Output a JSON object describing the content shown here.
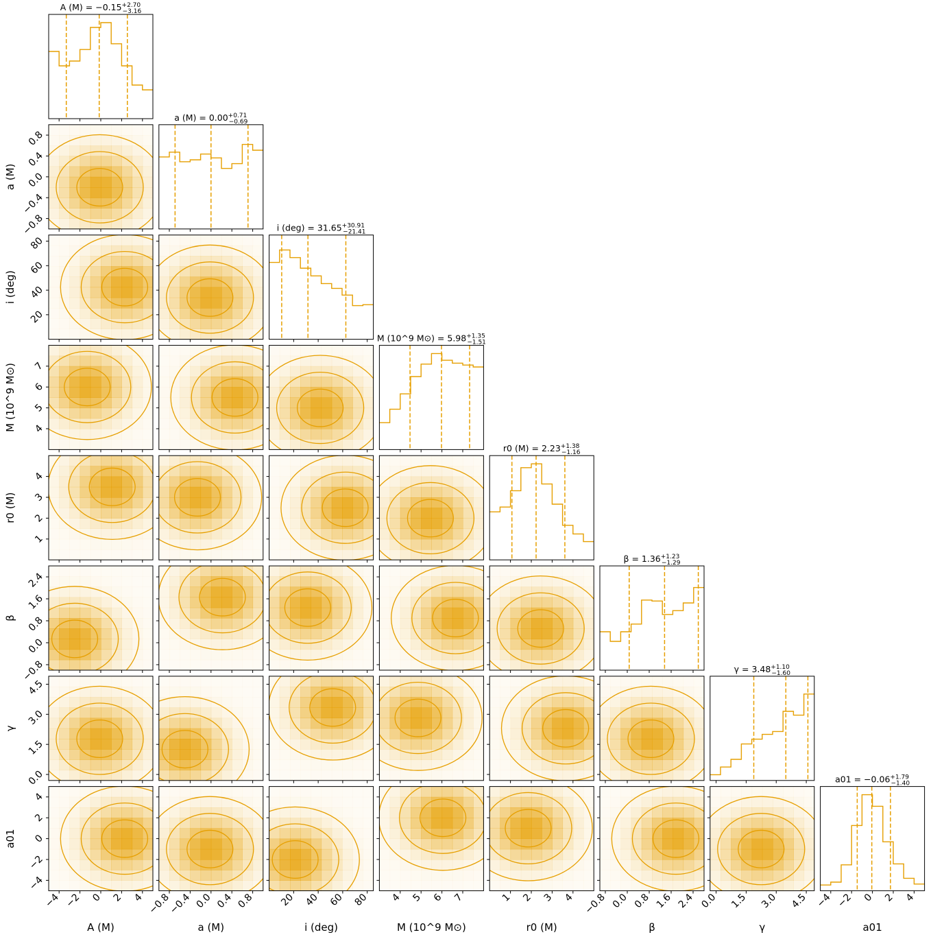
{
  "chart_data": {
    "type": "corner",
    "color": "#e69f00",
    "parameters": [
      {
        "key": "A",
        "label": "A (M)",
        "range": [
          -5,
          5
        ],
        "ticks": [
          -4,
          -2,
          0,
          2,
          4
        ],
        "tick_labels": [
          "−4",
          "−2",
          "0",
          "2",
          "4"
        ],
        "title": "A (M) = −0.15 (+2.70, −3.16)",
        "median": -0.15,
        "q_lo": -3.31,
        "q_hi": 2.55,
        "hist": [
          0.7,
          0.55,
          0.6,
          0.72,
          0.95,
          1.0,
          0.78,
          0.55,
          0.35,
          0.3
        ]
      },
      {
        "key": "a",
        "label": "a (M)",
        "range": [
          -1,
          1
        ],
        "ticks": [
          -0.8,
          -0.4,
          0.0,
          0.4,
          0.8
        ],
        "tick_labels": [
          "−0.8",
          "−0.4",
          "0.0",
          "0.4",
          "0.8"
        ],
        "title": "a (M) = 0.00 (+0.71, −0.69)",
        "median": 0.0,
        "q_lo": -0.69,
        "q_hi": 0.71,
        "hist": [
          0.75,
          0.8,
          0.7,
          0.72,
          0.78,
          0.74,
          0.63,
          0.68,
          0.88,
          0.82
        ]
      },
      {
        "key": "i",
        "label": "i (deg)",
        "range": [
          0,
          85
        ],
        "ticks": [
          20,
          40,
          60,
          80
        ],
        "tick_labels": [
          "20",
          "40",
          "60",
          "80"
        ],
        "title": "i (deg) = 31.65 (+30.91, −21.41)",
        "median": 31.65,
        "q_lo": 10.24,
        "q_hi": 62.56,
        "hist": [
          0.8,
          0.93,
          0.85,
          0.74,
          0.66,
          0.58,
          0.53,
          0.46,
          0.35,
          0.36
        ]
      },
      {
        "key": "M",
        "label": "M (10^9 M⊙)",
        "range": [
          3.0,
          8.0
        ],
        "ticks": [
          4,
          5,
          6,
          7
        ],
        "tick_labels": [
          "4",
          "5",
          "6",
          "7"
        ],
        "title": "M (10^9 M⊙) = 5.98 (+1.35, −1.51)",
        "median": 5.98,
        "q_lo": 4.47,
        "q_hi": 7.33,
        "hist": [
          0.28,
          0.42,
          0.58,
          0.76,
          0.89,
          1.0,
          0.93,
          0.9,
          0.88,
          0.86
        ]
      },
      {
        "key": "r0",
        "label": "r0 (M)",
        "range": [
          0.0,
          5.0
        ],
        "ticks": [
          1,
          2,
          3,
          4
        ],
        "tick_labels": [
          "1",
          "2",
          "3",
          "4"
        ],
        "title": "r0 (M) = 2.23 (+1.38, −1.16)",
        "median": 2.23,
        "q_lo": 1.07,
        "q_hi": 3.61,
        "hist": [
          0.5,
          0.55,
          0.72,
          0.96,
          1.0,
          0.79,
          0.58,
          0.36,
          0.27,
          0.19
        ]
      },
      {
        "key": "beta",
        "label": "β",
        "range": [
          -1.0,
          2.8
        ],
        "ticks": [
          -0.8,
          0.0,
          0.8,
          1.6,
          2.4
        ],
        "tick_labels": [
          "−0.8",
          "0.0",
          "0.8",
          "1.6",
          "2.4"
        ],
        "title": "β = 1.36 (+1.23, −1.29)",
        "median": 1.36,
        "q_lo": 0.07,
        "q_hi": 2.59,
        "hist": [
          0.4,
          0.3,
          0.4,
          0.48,
          0.73,
          0.72,
          0.58,
          0.62,
          0.7,
          0.86
        ]
      },
      {
        "key": "gamma",
        "label": "γ",
        "range": [
          -0.3,
          4.9
        ],
        "ticks": [
          0.0,
          1.5,
          3.0,
          4.5
        ],
        "tick_labels": [
          "0.0",
          "1.5",
          "3.0",
          "4.5"
        ],
        "title": "γ = 3.48 (+1.10, −1.60)",
        "median": 3.48,
        "q_lo": 1.88,
        "q_hi": 4.58,
        "hist": [
          0.06,
          0.14,
          0.22,
          0.38,
          0.43,
          0.48,
          0.51,
          0.72,
          0.68,
          0.9
        ]
      },
      {
        "key": "a01",
        "label": "a01",
        "range": [
          -5,
          5
        ],
        "ticks": [
          -4,
          -2,
          0,
          2,
          4
        ],
        "tick_labels": [
          "−4",
          "−2",
          "0",
          "2",
          "4"
        ],
        "title": "a01 = −0.06 (+1.79, −1.40)",
        "median": -0.06,
        "q_lo": -1.46,
        "q_hi": 1.73,
        "hist": [
          0.06,
          0.09,
          0.27,
          0.68,
          1.0,
          0.88,
          0.51,
          0.28,
          0.13,
          0.07
        ]
      }
    ]
  }
}
